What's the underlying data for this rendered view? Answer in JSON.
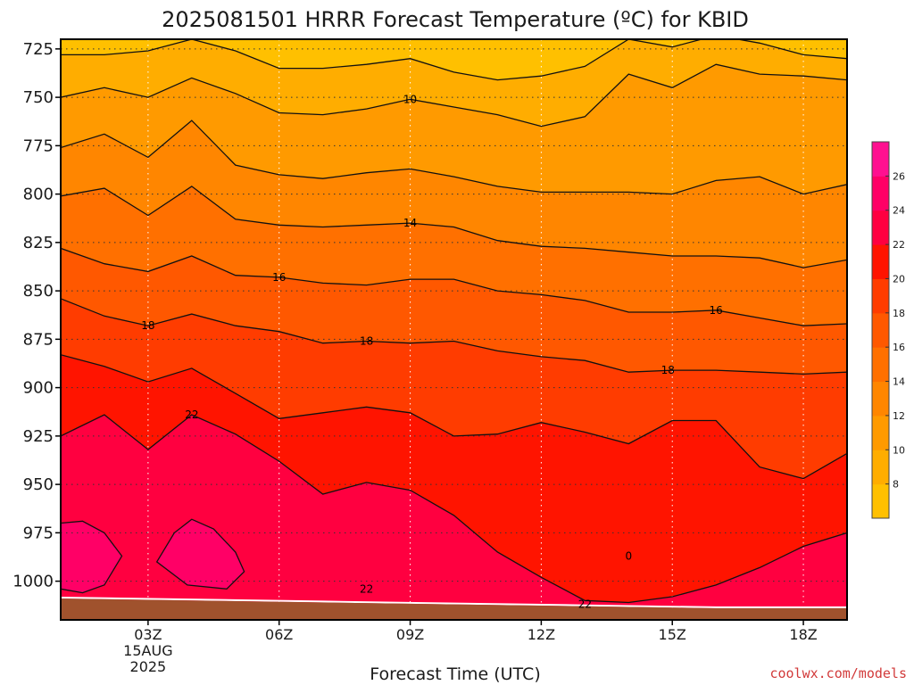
{
  "chart_data": {
    "type": "contour",
    "title": "2025081501 HRRR Forecast Temperature (ºC) for KBID",
    "xlabel": "Forecast Time (UTC)",
    "ylabel": "",
    "credit": "coolwx.com/models",
    "x_hours": [
      1,
      19
    ],
    "y_range": [
      720,
      1020
    ],
    "y_ticks": [
      725,
      750,
      775,
      800,
      825,
      850,
      875,
      900,
      925,
      950,
      975,
      1000
    ],
    "x_ticks": [
      {
        "hour": 3,
        "label": "03Z",
        "sub": [
          "15AUG",
          "2025"
        ]
      },
      {
        "hour": 6,
        "label": "06Z"
      },
      {
        "hour": 9,
        "label": "09Z"
      },
      {
        "hour": 12,
        "label": "12Z"
      },
      {
        "hour": 15,
        "label": "15Z"
      },
      {
        "hour": 18,
        "label": "18Z"
      }
    ],
    "grid": true,
    "colorbar": {
      "levels": [
        6,
        8,
        10,
        12,
        14,
        16,
        18,
        20,
        22,
        24,
        26,
        28
      ],
      "labels": [
        "8",
        "10",
        "12",
        "14",
        "16",
        "18",
        "20",
        "22",
        "24",
        "26"
      ],
      "colors": [
        "#ffc000",
        "#ffad00",
        "#ff9a00",
        "#ff8600",
        "#ff7000",
        "#ff5800",
        "#ff3c00",
        "#ff1400",
        "#ff0040",
        "#ff0066",
        "#ff1090"
      ]
    },
    "surface": {
      "color": "#a0522d",
      "hours": [
        1,
        7,
        10,
        13,
        16,
        19
      ],
      "pressure": [
        1009,
        1011,
        1012,
        1013,
        1014,
        1014
      ]
    },
    "contours": [
      {
        "level": 8,
        "hours": [
          1,
          2,
          3,
          4,
          5,
          6,
          7,
          8,
          9,
          10,
          11,
          12,
          13,
          14,
          15,
          16,
          17,
          18,
          19
        ],
        "pressure": [
          728,
          728,
          726,
          720,
          726,
          735,
          735,
          733,
          730,
          737,
          741,
          739,
          734,
          720,
          724,
          718,
          722,
          728,
          730
        ]
      },
      {
        "level": 10,
        "hours": [
          1,
          2,
          3,
          4,
          5,
          6,
          7,
          8,
          9,
          10,
          11,
          12,
          13,
          14,
          15,
          16,
          17,
          18,
          19
        ],
        "pressure": [
          750,
          745,
          750,
          740,
          748,
          758,
          759,
          756,
          751,
          755,
          759,
          765,
          760,
          738,
          745,
          733,
          738,
          739,
          741
        ]
      },
      {
        "level": 12,
        "hours": [
          1,
          2,
          3,
          4,
          5,
          6,
          7,
          8,
          9,
          10,
          11,
          12,
          13,
          14,
          15,
          16,
          17,
          18,
          19
        ],
        "pressure": [
          776,
          769,
          781,
          762,
          785,
          790,
          792,
          789,
          787,
          791,
          796,
          799,
          799,
          799,
          800,
          793,
          791,
          800,
          795
        ]
      },
      {
        "level": 14,
        "hours": [
          1,
          2,
          3,
          4,
          5,
          6,
          7,
          8,
          9,
          10,
          11,
          12,
          13,
          14,
          15,
          16,
          17,
          18,
          19
        ],
        "pressure": [
          801,
          797,
          811,
          796,
          813,
          816,
          817,
          816,
          815,
          817,
          824,
          827,
          828,
          830,
          832,
          832,
          833,
          838,
          834
        ]
      },
      {
        "level": 16,
        "hours": [
          1,
          2,
          3,
          4,
          5,
          6,
          7,
          8,
          9,
          10,
          11,
          12,
          13,
          14,
          15,
          16,
          17,
          18,
          19
        ],
        "pressure": [
          828,
          836,
          840,
          832,
          842,
          843,
          846,
          847,
          844,
          844,
          850,
          852,
          855,
          861,
          861,
          860,
          864,
          868,
          867
        ]
      },
      {
        "level": 18,
        "hours": [
          1,
          2,
          3,
          4,
          5,
          6,
          7,
          8,
          9,
          10,
          11,
          12,
          13,
          14,
          15,
          16,
          17,
          18,
          19
        ],
        "pressure": [
          854,
          863,
          868,
          862,
          868,
          871,
          877,
          876,
          877,
          876,
          881,
          884,
          886,
          892,
          891,
          891,
          892,
          893,
          892
        ]
      },
      {
        "level": 20,
        "hours": [
          1,
          2,
          3,
          4,
          5,
          6,
          7,
          8,
          9,
          10,
          11,
          12,
          13,
          14,
          15,
          16,
          17,
          18,
          19
        ],
        "pressure": [
          883,
          889,
          897,
          890,
          903,
          916,
          913,
          910,
          913,
          925,
          924,
          918,
          923,
          929,
          917,
          917,
          941,
          947,
          934
        ]
      },
      {
        "level": 22,
        "hours": [
          1,
          2,
          3,
          4,
          5,
          6,
          7,
          8,
          9,
          10,
          11,
          12,
          13,
          14,
          15,
          16,
          17,
          18,
          19
        ],
        "pressure": [
          925,
          914,
          932,
          914,
          924,
          938,
          955,
          949,
          953,
          966,
          985,
          998,
          1010,
          1011,
          1008,
          1002,
          993,
          982,
          975
        ]
      },
      {
        "level": 24,
        "closed": true,
        "hours": [
          1.0,
          1.5,
          2.0,
          2.4,
          2.0,
          1.5,
          1.0
        ],
        "pressure": [
          970,
          969,
          975,
          987,
          1002,
          1006,
          1004
        ]
      },
      {
        "level": 24,
        "closed": true,
        "hours": [
          3.2,
          3.6,
          4.0,
          4.5,
          5.0,
          5.2,
          4.8,
          3.9,
          3.2
        ],
        "pressure": [
          990,
          975,
          968,
          973,
          985,
          995,
          1004,
          1002,
          990
        ]
      }
    ],
    "contour_labels": [
      {
        "text": "10",
        "hour": 9,
        "pressure": 751
      },
      {
        "text": "14",
        "hour": 9,
        "pressure": 815
      },
      {
        "text": "16",
        "hour": 6,
        "pressure": 843
      },
      {
        "text": "16",
        "hour": 16,
        "pressure": 860
      },
      {
        "text": "18",
        "hour": 3,
        "pressure": 868
      },
      {
        "text": "18",
        "hour": 8,
        "pressure": 876
      },
      {
        "text": "18",
        "hour": 14.9,
        "pressure": 891
      },
      {
        "text": "22",
        "hour": 4,
        "pressure": 914
      },
      {
        "text": "22",
        "hour": 8,
        "pressure": 1004
      },
      {
        "text": "22",
        "hour": 13,
        "pressure": 1012
      },
      {
        "text": "0",
        "hour": 14,
        "pressure": 987
      }
    ]
  }
}
